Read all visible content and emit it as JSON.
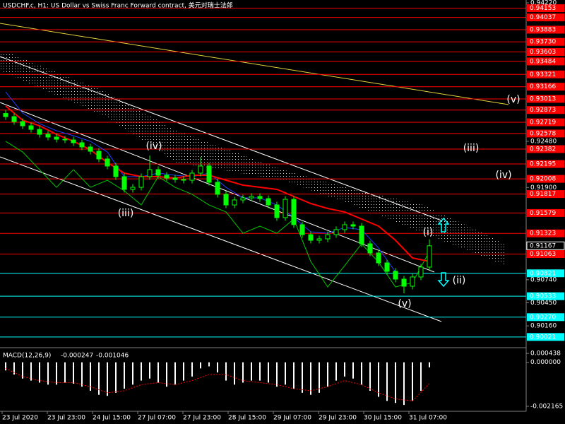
{
  "chart_data": {
    "type": "candlestick",
    "title": "USDCHF.c, H1: US Dollar vs Swiss Franc Forward contract, 美元对瑞士法郎",
    "x_labels": [
      "23 Jul 2020",
      "23 Jul 23:00",
      "24 Jul 15:00",
      "27 Jul 07:00",
      "27 Jul 23:00",
      "28 Jul 15:00",
      "29 Jul 07:00",
      "29 Jul 23:00",
      "30 Jul 15:00",
      "31 Jul 07:00"
    ],
    "color": "#00ff00",
    "open": [
      0.9283,
      0.9279,
      0.92728,
      0.92675,
      0.9263,
      0.92568,
      0.92533,
      0.92506,
      0.92497,
      0.92462,
      0.92409,
      0.92355,
      0.92258,
      0.92169,
      0.92036,
      0.91876,
      0.91902,
      0.92036,
      0.92124,
      0.92053,
      0.92018,
      0.92,
      0.91991,
      0.9208,
      0.92169,
      0.91965,
      0.91814,
      0.9168,
      0.91743,
      0.91769,
      0.91787,
      0.9176,
      0.9168,
      0.91521,
      0.91751,
      0.91432,
      0.91307,
      0.91236,
      0.91254,
      0.91307,
      0.9137,
      0.91432,
      0.91414,
      0.91192,
      0.91077,
      0.90952,
      0.90846,
      0.90748,
      0.90659,
      0.90775,
      0.90899
    ],
    "high": [
      0.9287,
      0.9283,
      0.92768,
      0.92715,
      0.9267,
      0.92608,
      0.92573,
      0.92546,
      0.92537,
      0.92502,
      0.92449,
      0.92395,
      0.92298,
      0.92209,
      0.92076,
      0.91942,
      0.92076,
      0.923,
      0.92164,
      0.92093,
      0.92058,
      0.9204,
      0.9212,
      0.92284,
      0.92209,
      0.92005,
      0.91854,
      0.91783,
      0.91809,
      0.91827,
      0.91827,
      0.918,
      0.9172,
      0.91791,
      0.91791,
      0.91472,
      0.91347,
      0.91294,
      0.91347,
      0.9141,
      0.91472,
      0.91472,
      0.91454,
      0.91232,
      0.91117,
      0.90992,
      0.90886,
      0.90788,
      0.90815,
      0.90939,
      0.9125
    ],
    "low": [
      0.9275,
      0.92688,
      0.92635,
      0.9259,
      0.92528,
      0.92493,
      0.92466,
      0.92457,
      0.92422,
      0.92369,
      0.92315,
      0.92218,
      0.92129,
      0.91996,
      0.91836,
      0.91836,
      0.91862,
      0.91996,
      0.92013,
      0.91978,
      0.9196,
      0.91951,
      0.91951,
      0.9204,
      0.91925,
      0.91774,
      0.9164,
      0.9164,
      0.91703,
      0.91729,
      0.9172,
      0.9164,
      0.91481,
      0.91481,
      0.91392,
      0.91267,
      0.91196,
      0.91196,
      0.91214,
      0.91267,
      0.9133,
      0.91374,
      0.91152,
      0.91037,
      0.90912,
      0.90806,
      0.90708,
      0.9057,
      0.90619,
      0.90735,
      0.90859
    ],
    "close": [
      0.9279,
      0.92728,
      0.92675,
      0.9263,
      0.92568,
      0.92533,
      0.92506,
      0.92497,
      0.92462,
      0.92409,
      0.92355,
      0.92258,
      0.92169,
      0.92036,
      0.91876,
      0.91902,
      0.92036,
      0.92124,
      0.92053,
      0.92018,
      0.92,
      0.91991,
      0.9208,
      0.92169,
      0.91965,
      0.91814,
      0.9168,
      0.91743,
      0.91769,
      0.91787,
      0.9176,
      0.9168,
      0.91521,
      0.91751,
      0.91432,
      0.91307,
      0.91236,
      0.91254,
      0.91307,
      0.9137,
      0.91432,
      0.91414,
      0.91192,
      0.91077,
      0.90952,
      0.90846,
      0.90748,
      0.90659,
      0.90775,
      0.90899,
      0.91167
    ],
    "lines": [
      {
        "color": "#00c800",
        "values": [
          0.9248,
          0.92346,
          0.92124,
          0.91902,
          0.92124,
          0.91902,
          0.91991,
          0.91858,
          0.9168,
          0.92036,
          0.91902,
          0.91814,
          0.9168,
          0.91592,
          0.91325,
          0.91414,
          0.91325,
          0.91503,
          0.9097,
          0.9065,
          0.90917,
          0.91192,
          0.90961,
          0.9065,
          0.90704,
          0.91094
        ]
      },
      {
        "color": "#1e3cff",
        "values": [
          0.93101,
          0.92835,
          0.92702,
          0.92613,
          0.92551,
          0.9248,
          0.92346,
          0.92036,
          0.92036,
          0.9208,
          0.92053,
          0.92036,
          0.9208,
          0.91902,
          0.91769,
          0.91769,
          0.9168,
          0.91521,
          0.91343,
          0.91325,
          0.91396,
          0.9137,
          0.91139,
          0.90837,
          null,
          null
        ]
      },
      {
        "color": "#ff0000",
        "values": [
          0.92924,
          0.92746,
          0.92675,
          0.92568,
          0.9248,
          0.92373,
          0.92213,
          0.9208,
          0.92036,
          0.92036,
          0.92018,
          0.92053,
          0.92053,
          0.91991,
          0.91929,
          0.91902,
          0.91876,
          0.91787,
          0.91698,
          0.91636,
          0.91592,
          0.91503,
          0.91414,
          0.91236,
          0.91014,
          0.9097
        ]
      }
    ],
    "levels": [
      {
        "color": "#ff0000",
        "values": [
          0.94153,
          0.94037,
          0.93883,
          {
            "value": 0.9373,
            "label": "0.93730"
          },
          0.93603,
          0.93484,
          0.93321,
          0.93166,
          0.93013,
          0.92873,
          0.92719,
          0.92578,
          0.92382,
          0.92195,
          0.92008,
          0.91817,
          0.91579,
          0.91323,
          0.91063
        ]
      },
      {
        "color": "#00ffff",
        "values": [
          0.90821,
          0.90533,
          {
            "value": 0.9027,
            "label": "0.90270"
          },
          0.90021
        ]
      }
    ],
    "current_price": 0.91167,
    "ylim": [
      0.89904,
      0.94256
    ],
    "yticks": [
      {
        "value": 0.9422,
        "label": "0.94220"
      },
      {
        "value": 0.9248,
        "label": "0.92480"
      },
      {
        "value": 0.919,
        "label": "0.91900"
      },
      {
        "value": 0.9074,
        "label": "0.90740"
      },
      {
        "value": 0.9045,
        "label": "0.90450"
      },
      {
        "value": 0.9016,
        "label": "0.90160"
      }
    ],
    "annotations": [
      "(v)",
      "(iii)",
      "(iv)",
      "(iv)",
      "(iii)",
      "(i)",
      "(ii)",
      "(v)"
    ],
    "macd": {
      "type": "histogram",
      "label": "MACD(12,26,9)",
      "values": [
        -0.0004,
        -0.0006,
        -0.0008,
        -0.0009,
        -0.001,
        -0.0011,
        -0.0011,
        -0.001,
        -0.00105,
        -0.0012,
        -0.0014,
        -0.0016,
        -0.00165,
        -0.0015,
        -0.0013,
        -0.0011,
        -0.0009,
        -0.0008,
        -0.001,
        -0.0012,
        -0.0011,
        -0.0009,
        -0.0007,
        -0.0003,
        -0.0002,
        -0.0005,
        -0.0009,
        -0.0011,
        -0.001,
        -0.0009,
        -0.0009,
        -0.001,
        -0.0012,
        -0.0011,
        -0.0013,
        -0.0015,
        -0.0016,
        -0.0015,
        -0.0012,
        -0.0009,
        -0.0007,
        -0.0008,
        -0.0011,
        -0.0014,
        -0.0017,
        -0.0019,
        -0.002,
        -0.0021,
        -0.0019,
        -0.0014,
        -0.000247
      ],
      "color": "#ffffff",
      "signal": [
        -0.0003,
        -0.0007,
        -0.0009,
        -0.001,
        -0.001,
        -0.0012,
        -0.0015,
        -0.0014,
        -0.0011,
        -0.001,
        -0.0011,
        -0.0009,
        -0.0006,
        -0.0006,
        -0.0009,
        -0.001,
        -0.0011,
        -0.0013,
        -0.0014,
        -0.0012,
        -0.0009,
        -0.0011,
        -0.0015,
        -0.0018,
        -0.0019,
        -0.001046
      ],
      "signal_color": "#ff0000",
      "ylim": [
        -0.00241,
        0.00065
      ],
      "yticks": [
        0.000438,
        {
          "value": 0,
          "label": "0.000000"
        },
        -0.002165
      ]
    }
  }
}
